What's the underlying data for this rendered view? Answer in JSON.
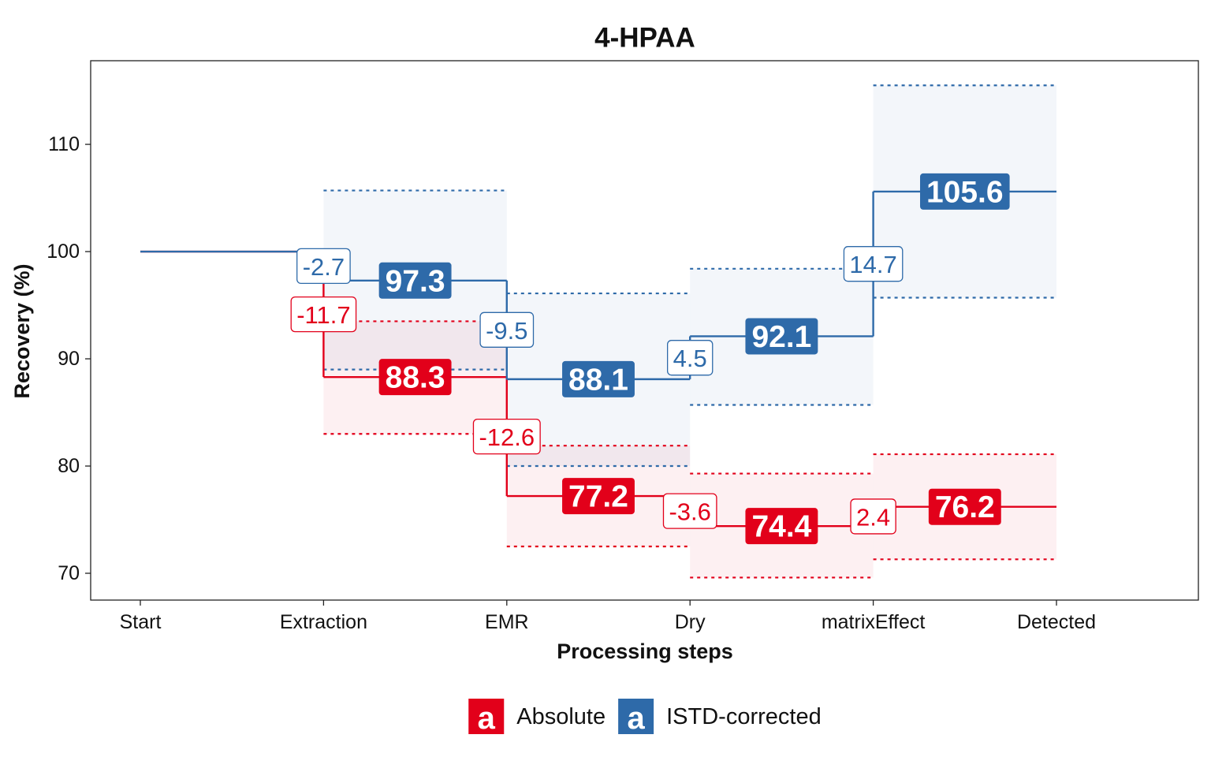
{
  "chart_data": {
    "type": "step",
    "title": "4-HPAA",
    "x_label": "Processing steps",
    "y_label": "Recovery (%)",
    "categories": [
      "Start",
      "Extraction",
      "EMR",
      "Dry",
      "matrixEffect",
      "Detected"
    ],
    "ylim": [
      67.5,
      117.8
    ],
    "yticks": [
      70,
      80,
      90,
      100,
      110
    ],
    "grid": false,
    "legend_position": "bottom",
    "legend_glyph": "a",
    "series": [
      {
        "name": "Absolute",
        "color": "#e2001a",
        "values": [
          100,
          88.3,
          77.2,
          74.4,
          76.2,
          null
        ],
        "changes": [
          null,
          -11.7,
          -12.6,
          -3.6,
          2.4,
          null
        ],
        "lower": [
          null,
          83.0,
          72.5,
          69.6,
          71.3,
          null
        ],
        "upper": [
          null,
          93.5,
          81.9,
          79.3,
          81.1,
          null
        ]
      },
      {
        "name": "ISTD-corrected",
        "color": "#2e6aa9",
        "values": [
          100,
          97.3,
          88.1,
          92.1,
          105.6,
          null
        ],
        "changes": [
          null,
          -2.7,
          -9.5,
          4.5,
          14.7,
          null
        ],
        "lower": [
          null,
          89.0,
          80.0,
          85.7,
          95.7,
          null
        ],
        "upper": [
          null,
          105.7,
          96.1,
          98.4,
          115.5,
          null
        ]
      }
    ]
  }
}
